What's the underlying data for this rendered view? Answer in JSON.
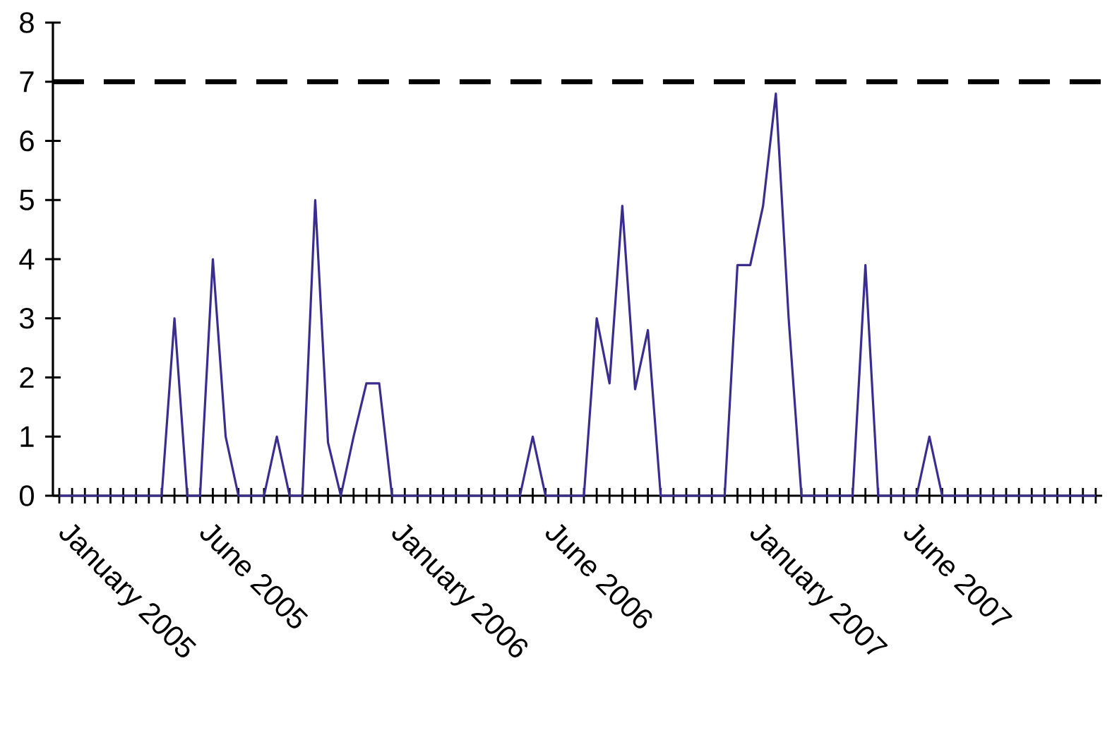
{
  "chart_data": {
    "type": "line",
    "categories": [
      null,
      "January 2005",
      null,
      null,
      null,
      null,
      null,
      null,
      null,
      null,
      null,
      null,
      "June 2005",
      null,
      null,
      null,
      null,
      null,
      null,
      null,
      null,
      null,
      null,
      null,
      null,
      null,
      null,
      "January 2006",
      null,
      null,
      null,
      null,
      null,
      null,
      null,
      null,
      null,
      null,
      null,
      "June 2006",
      null,
      null,
      null,
      null,
      null,
      null,
      null,
      null,
      null,
      null,
      null,
      null,
      null,
      null,
      null,
      "January 2007",
      null,
      null,
      null,
      null,
      null,
      null,
      null,
      null,
      null,
      null,
      null,
      "June 2007",
      null,
      null,
      null,
      null,
      null,
      null,
      null,
      null,
      null,
      null,
      null,
      null,
      null,
      null
    ],
    "series": [
      {
        "color": "#3b2d8f",
        "values": [
          0,
          0,
          0,
          0,
          0,
          0,
          0,
          0,
          0,
          3,
          0,
          0,
          4,
          1,
          0,
          0,
          0,
          1,
          0,
          0,
          5,
          0.9,
          0,
          1,
          1.9,
          1.9,
          0,
          0,
          0,
          0,
          0,
          0,
          0,
          0,
          0,
          0,
          0,
          1,
          0,
          0,
          0,
          0,
          3,
          1.9,
          4.9,
          1.8,
          2.8,
          0,
          0,
          0,
          0,
          0,
          0,
          3.9,
          3.9,
          4.9,
          6.8,
          3,
          0,
          0,
          0,
          0,
          0,
          3.9,
          0,
          0,
          0,
          0,
          1,
          0,
          0,
          0,
          0,
          0,
          0,
          0,
          0,
          0,
          0,
          0,
          0,
          0
        ]
      }
    ],
    "ylim": [
      0,
      8
    ],
    "yticks": [
      0,
      1,
      2,
      3,
      4,
      5,
      6,
      7,
      8
    ],
    "ref_lines": [
      {
        "axis": "y",
        "value": 7,
        "color": "#000000",
        "line_style": "dashed"
      }
    ]
  }
}
